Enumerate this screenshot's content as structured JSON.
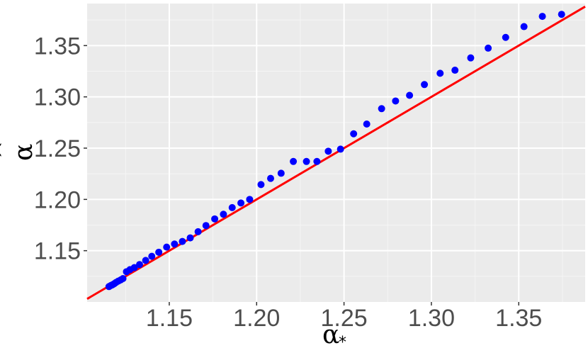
{
  "chart_data": {
    "type": "scatter",
    "xlabel": "α",
    "xlabel_subscript": "*",
    "ylabel": "α",
    "ylabel_hat": "^",
    "xlim": [
      1.103,
      1.388
    ],
    "ylim": [
      1.1,
      1.391
    ],
    "x_ticks": [
      1.15,
      1.2,
      1.25,
      1.3,
      1.35
    ],
    "x_tick_labels": [
      "1.15",
      "1.20",
      "1.25",
      "1.30",
      "1.35"
    ],
    "y_ticks": [
      1.15,
      1.2,
      1.25,
      1.3,
      1.35
    ],
    "y_tick_labels": [
      "1.15",
      "1.20",
      "1.25",
      "1.30",
      "1.35"
    ],
    "grid": true,
    "background": "#ebebeb",
    "point_color": "#0000ff",
    "line_color": "#ff0000",
    "reference_line": {
      "type": "identity",
      "slope": 1,
      "intercept": 0
    },
    "series": [
      {
        "points": [
          [
            1.1155,
            1.115
          ],
          [
            1.1165,
            1.116
          ],
          [
            1.1175,
            1.1168
          ],
          [
            1.1185,
            1.1178
          ],
          [
            1.1195,
            1.119
          ],
          [
            1.1208,
            1.1203
          ],
          [
            1.1222,
            1.1215
          ],
          [
            1.1235,
            1.1228
          ],
          [
            1.1255,
            1.1295
          ],
          [
            1.1275,
            1.1315
          ],
          [
            1.13,
            1.1335
          ],
          [
            1.133,
            1.1365
          ],
          [
            1.1365,
            1.1405
          ],
          [
            1.14,
            1.1445
          ],
          [
            1.144,
            1.1485
          ],
          [
            1.1485,
            1.1535
          ],
          [
            1.153,
            1.1565
          ],
          [
            1.1575,
            1.159
          ],
          [
            1.162,
            1.1625
          ],
          [
            1.1665,
            1.1685
          ],
          [
            1.171,
            1.1745
          ],
          [
            1.176,
            1.181
          ],
          [
            1.181,
            1.1855
          ],
          [
            1.186,
            1.192
          ],
          [
            1.191,
            1.1965
          ],
          [
            1.196,
            1.2
          ],
          [
            1.2025,
            1.2145
          ],
          [
            1.208,
            1.2205
          ],
          [
            1.214,
            1.2255
          ],
          [
            1.221,
            1.237
          ],
          [
            1.2285,
            1.237
          ],
          [
            1.2345,
            1.237
          ],
          [
            1.241,
            1.247
          ],
          [
            1.248,
            1.249
          ],
          [
            1.2555,
            1.264
          ],
          [
            1.263,
            1.2735
          ],
          [
            1.2715,
            1.2885
          ],
          [
            1.2795,
            1.296
          ],
          [
            1.2875,
            1.3015
          ],
          [
            1.296,
            1.312
          ],
          [
            1.305,
            1.323
          ],
          [
            1.3135,
            1.326
          ],
          [
            1.3225,
            1.338
          ],
          [
            1.3325,
            1.3475
          ],
          [
            1.3425,
            1.358
          ],
          [
            1.353,
            1.3685
          ],
          [
            1.3635,
            1.3785
          ],
          [
            1.3745,
            1.3805
          ]
        ]
      }
    ]
  }
}
